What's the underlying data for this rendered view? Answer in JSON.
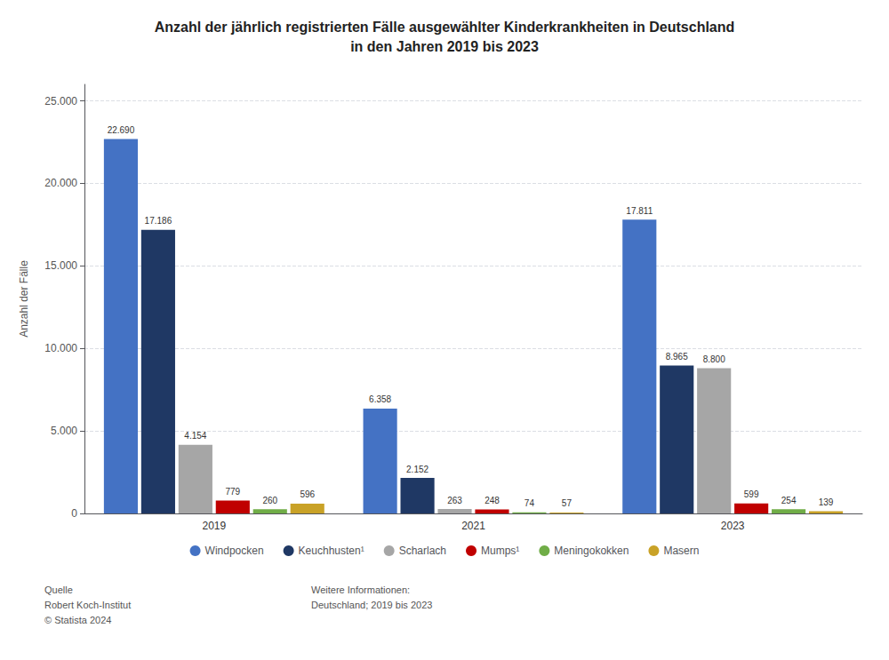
{
  "chart_data": {
    "type": "bar",
    "title": "Anzahl der jährlich registrierten Fälle ausgewählter Kinderkrankheiten in Deutschland\nin den Jahren 2019 bis 2023",
    "ylabel": "Anzahl der Fälle",
    "categories": [
      "2019",
      "2021",
      "2023"
    ],
    "series": [
      {
        "name": "Windpocken",
        "color": "#4472C4",
        "values": [
          22690,
          6358,
          17811
        ],
        "value_labels": [
          "22.690",
          "6.358",
          "17.811"
        ]
      },
      {
        "name": "Keuchhusten¹",
        "color": "#1F3864",
        "values": [
          17186,
          2152,
          8965
        ],
        "value_labels": [
          "17.186",
          "2.152",
          "8.965"
        ]
      },
      {
        "name": "Scharlach",
        "color": "#A6A6A6",
        "values": [
          4154,
          263,
          8800
        ],
        "value_labels": [
          "4.154",
          "263",
          "8.800"
        ]
      },
      {
        "name": "Mumps¹",
        "color": "#C00000",
        "values": [
          779,
          248,
          599
        ],
        "value_labels": [
          "779",
          "248",
          "599"
        ]
      },
      {
        "name": "Meningokokken",
        "color": "#70AD47",
        "values": [
          260,
          74,
          254
        ],
        "value_labels": [
          "260",
          "74",
          "254"
        ]
      },
      {
        "name": "Masern",
        "color": "#C9A227",
        "values": [
          596,
          57,
          139
        ],
        "value_labels": [
          "596",
          "57",
          "139"
        ]
      }
    ],
    "ylim": [
      0,
      26000
    ],
    "yticks": [
      0,
      {
        "value": 5000,
        "label": "5.000"
      },
      {
        "value": 10000,
        "label": "10.000"
      },
      {
        "value": 15000,
        "label": "15.000"
      },
      {
        "value": 20000,
        "label": "20.000"
      },
      {
        "value": 25000,
        "label": "25.000"
      }
    ],
    "grid": true,
    "legend": "bottom",
    "data_labels": true,
    "annotations": [
      "Quelle\nRobert Koch-Institut\n© Statista 2024",
      "Weitere Informationen:\nDeutschland; 2019 bis 2023"
    ]
  }
}
